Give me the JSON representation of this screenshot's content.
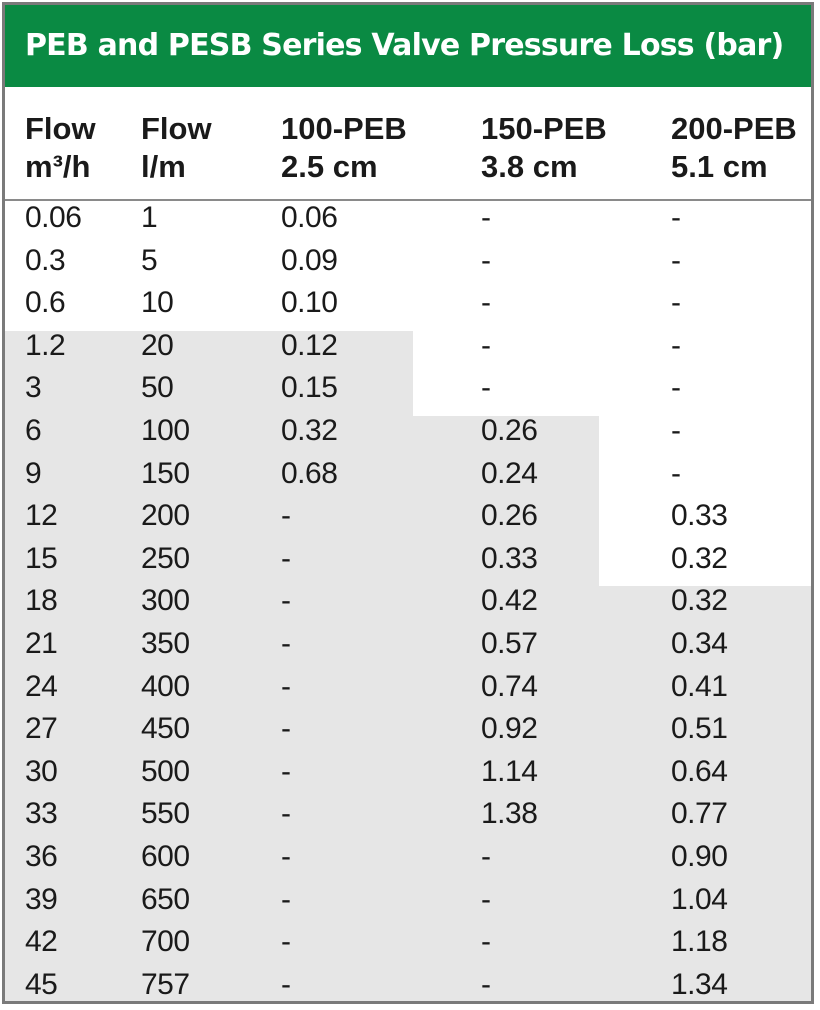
{
  "title": "PEB and PESB Series Valve Pressure Loss (bar)",
  "columns": [
    {
      "line1": "Flow",
      "line2": "m³/h"
    },
    {
      "line1": "Flow",
      "line2": "l/m"
    },
    {
      "line1": "100-PEB",
      "line2": "2.5 cm"
    },
    {
      "line1": "150-PEB",
      "line2": "3.8 cm"
    },
    {
      "line1": "200-PEB",
      "line2": "5.1 cm"
    }
  ],
  "rows": [
    [
      "0.06",
      "1",
      "0.06",
      "-",
      "-"
    ],
    [
      "0.3",
      "5",
      "0.09",
      "-",
      "-"
    ],
    [
      "0.6",
      "10",
      "0.10",
      "-",
      "-"
    ],
    [
      "1.2",
      "20",
      "0.12",
      "-",
      "-"
    ],
    [
      "3",
      "50",
      "0.15",
      "-",
      "-"
    ],
    [
      "6",
      "100",
      "0.32",
      "0.26",
      "-"
    ],
    [
      "9",
      "150",
      "0.68",
      "0.24",
      "-"
    ],
    [
      "12",
      "200",
      "-",
      "0.26",
      "0.33"
    ],
    [
      "15",
      "250",
      "-",
      "0.33",
      "0.32"
    ],
    [
      "18",
      "300",
      "-",
      "0.42",
      "0.32"
    ],
    [
      "21",
      "350",
      "-",
      "0.57",
      "0.34"
    ],
    [
      "24",
      "400",
      "-",
      "0.74",
      "0.41"
    ],
    [
      "27",
      "450",
      "-",
      "0.92",
      "0.51"
    ],
    [
      "30",
      "500",
      "-",
      "1.14",
      "0.64"
    ],
    [
      "33",
      "550",
      "-",
      "1.38",
      "0.77"
    ],
    [
      "36",
      "600",
      "-",
      "-",
      "0.90"
    ],
    [
      "39",
      "650",
      "-",
      "-",
      "1.04"
    ],
    [
      "42",
      "700",
      "-",
      "-",
      "1.18"
    ],
    [
      "45",
      "757",
      "-",
      "-",
      "1.34"
    ]
  ],
  "colors": {
    "title_bg": "#0a8a43",
    "shade": "#e6e6e6",
    "border": "#7a7a7a"
  }
}
